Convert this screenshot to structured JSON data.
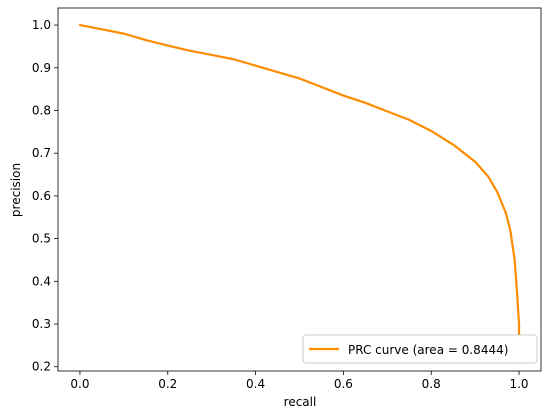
{
  "chart_data": {
    "type": "line",
    "xlabel": "recall",
    "ylabel": "precision",
    "xlim": [
      -0.05,
      1.05
    ],
    "ylim": [
      0.19,
      1.04
    ],
    "xticks": [
      0.0,
      0.2,
      0.4,
      0.6,
      0.8,
      1.0
    ],
    "xtick_labels": [
      "0.0",
      "0.2",
      "0.4",
      "0.6",
      "0.8",
      "1.0"
    ],
    "yticks": [
      0.2,
      0.3,
      0.4,
      0.5,
      0.6,
      0.7,
      0.8,
      0.9,
      1.0
    ],
    "ytick_labels": [
      "0.2",
      "0.3",
      "0.4",
      "0.5",
      "0.6",
      "0.7",
      "0.8",
      "0.9",
      "1.0"
    ],
    "grid": false,
    "legend_position": "lower-right",
    "series": [
      {
        "name": "PRC curve (area = 0.8444)",
        "color": "#ff8c00",
        "x": [
          0.0,
          0.05,
          0.1,
          0.15,
          0.2,
          0.25,
          0.3,
          0.35,
          0.4,
          0.45,
          0.5,
          0.55,
          0.6,
          0.65,
          0.7,
          0.75,
          0.8,
          0.85,
          0.9,
          0.93,
          0.95,
          0.97,
          0.98,
          0.99,
          0.995,
          1.0,
          1.0
        ],
        "y": [
          1.0,
          0.99,
          0.98,
          0.965,
          0.952,
          0.94,
          0.93,
          0.92,
          0.905,
          0.89,
          0.875,
          0.855,
          0.835,
          0.818,
          0.798,
          0.778,
          0.752,
          0.72,
          0.68,
          0.645,
          0.61,
          0.56,
          0.52,
          0.45,
          0.38,
          0.3,
          0.26
        ]
      }
    ]
  }
}
